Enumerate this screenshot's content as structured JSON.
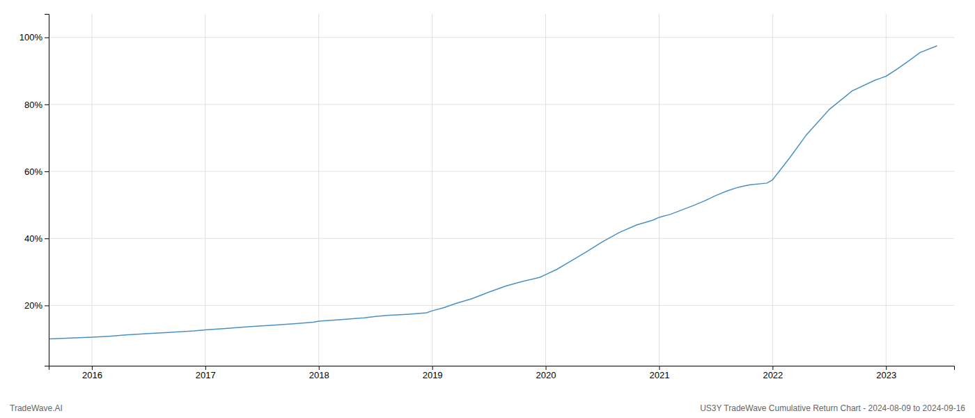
{
  "chart_data": {
    "type": "line",
    "title": "US3Y TradeWave Cumulative Return Chart - 2024-08-09 to 2024-09-16",
    "annotations": [
      "TradeWave.AI"
    ],
    "color": "#4a90c4",
    "grid": true,
    "x": [
      2015.62,
      2016.0,
      2016.15,
      2016.3,
      2016.5,
      2016.7,
      2016.9,
      2017.0,
      2017.2,
      2017.4,
      2017.6,
      2017.8,
      2017.95,
      2018.0,
      2018.2,
      2018.4,
      2018.5,
      2018.6,
      2018.8,
      2018.95,
      2019.0,
      2019.1,
      2019.2,
      2019.35,
      2019.5,
      2019.65,
      2019.8,
      2019.95,
      2020.0,
      2020.1,
      2020.2,
      2020.35,
      2020.5,
      2020.65,
      2020.8,
      2020.95,
      2021.0,
      2021.1,
      2021.2,
      2021.3,
      2021.4,
      2021.5,
      2021.6,
      2021.7,
      2021.8,
      2021.95,
      2022.0,
      2022.15,
      2022.3,
      2022.5,
      2022.7,
      2022.9,
      2022.95,
      2023.0,
      2023.1,
      2023.2,
      2023.3,
      2023.45
    ],
    "values": [
      0.1,
      0.105,
      0.108,
      0.112,
      0.116,
      0.12,
      0.124,
      0.127,
      0.132,
      0.137,
      0.141,
      0.146,
      0.15,
      0.153,
      0.158,
      0.163,
      0.167,
      0.17,
      0.174,
      0.178,
      0.184,
      0.193,
      0.205,
      0.22,
      0.24,
      0.258,
      0.272,
      0.284,
      0.292,
      0.308,
      0.328,
      0.358,
      0.39,
      0.418,
      0.44,
      0.455,
      0.463,
      0.472,
      0.485,
      0.498,
      0.512,
      0.528,
      0.542,
      0.553,
      0.56,
      0.565,
      0.575,
      0.64,
      0.71,
      0.785,
      0.84,
      0.872,
      0.878,
      0.884,
      0.906,
      0.93,
      0.955,
      0.975
    ],
    "xlim": [
      2015.62,
      2023.6
    ],
    "xticks": [
      2016,
      2017,
      2018,
      2019,
      2020,
      2021,
      2022,
      2023
    ],
    "ylim": [
      0.02,
      1.07
    ],
    "yticks": [
      {
        "value": 0.2,
        "label": "20%"
      },
      {
        "value": 0.4,
        "label": "40%"
      },
      {
        "value": 0.6,
        "label": "60%"
      },
      {
        "value": 0.8,
        "label": "80%"
      },
      {
        "value": 1.0,
        "label": "100%"
      }
    ]
  }
}
